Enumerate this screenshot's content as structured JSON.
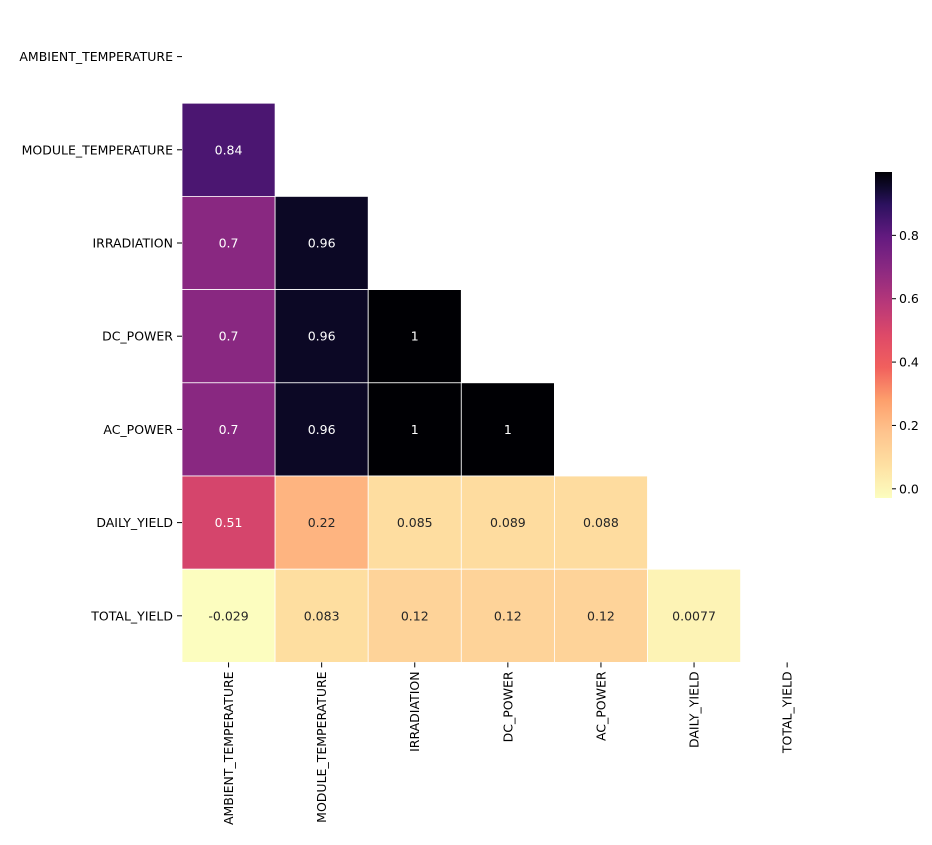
{
  "chart_data": {
    "type": "heatmap",
    "variables": [
      "AMBIENT_TEMPERATURE",
      "MODULE_TEMPERATURE",
      "IRRADIATION",
      "DC_POWER",
      "AC_POWER",
      "DAILY_YIELD",
      "TOTAL_YIELD"
    ],
    "matrix": [
      [
        null,
        null,
        null,
        null,
        null,
        null,
        null
      ],
      [
        0.84,
        null,
        null,
        null,
        null,
        null,
        null
      ],
      [
        0.7,
        0.96,
        null,
        null,
        null,
        null,
        null
      ],
      [
        0.7,
        0.96,
        1,
        null,
        null,
        null,
        null
      ],
      [
        0.7,
        0.96,
        1,
        1,
        null,
        null,
        null
      ],
      [
        0.51,
        0.22,
        0.085,
        0.089,
        0.088,
        null,
        null
      ],
      [
        -0.029,
        0.083,
        0.12,
        0.12,
        0.12,
        0.0077,
        null
      ]
    ],
    "cell_labels": [
      [
        null,
        null,
        null,
        null,
        null,
        null,
        null
      ],
      [
        "0.84",
        null,
        null,
        null,
        null,
        null,
        null
      ],
      [
        "0.7",
        "0.96",
        null,
        null,
        null,
        null,
        null
      ],
      [
        "0.7",
        "0.96",
        "1",
        null,
        null,
        null,
        null
      ],
      [
        "0.7",
        "0.96",
        "1",
        "1",
        null,
        null,
        null
      ],
      [
        "0.51",
        "0.22",
        "0.085",
        "0.089",
        "0.088",
        null,
        null
      ],
      [
        "-0.029",
        "0.083",
        "0.12",
        "0.12",
        "0.12",
        "0.0077",
        null
      ]
    ],
    "mask": "upper-triangle",
    "colormap": "magma_r",
    "vmin": -0.029,
    "vmax": 1.0,
    "colorbar": {
      "ticks": [
        0.0,
        0.2,
        0.4,
        0.6,
        0.8
      ],
      "tick_labels": [
        "0.0",
        "0.2",
        "0.4",
        "0.6",
        "0.8"
      ],
      "placement": "right"
    },
    "title": "",
    "xlabel": "",
    "ylabel": ""
  }
}
